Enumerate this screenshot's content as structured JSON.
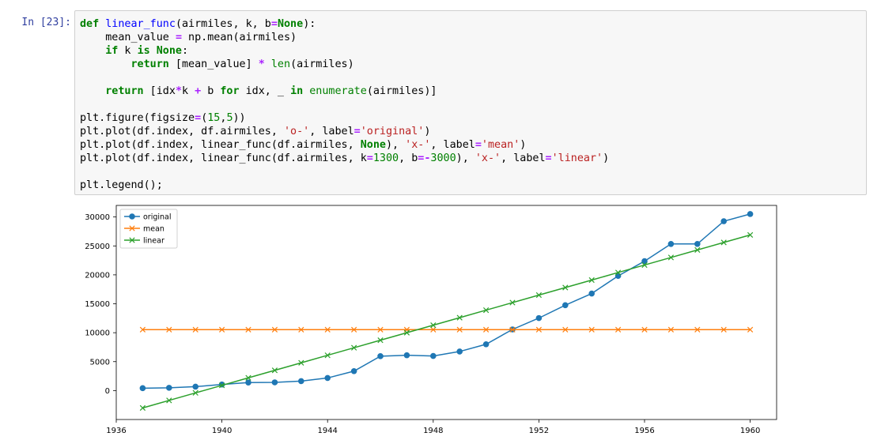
{
  "cell": {
    "prompt": "In [23]:",
    "code_lines": [
      [
        {
          "t": "def",
          "c": "kw"
        },
        {
          "t": " "
        },
        {
          "t": "linear_func",
          "c": "fn"
        },
        {
          "t": "(airmiles, k, b"
        },
        {
          "t": "=",
          "c": "op"
        },
        {
          "t": "None",
          "c": "kw"
        },
        {
          "t": "):"
        }
      ],
      [
        {
          "t": "    mean_value "
        },
        {
          "t": "=",
          "c": "op"
        },
        {
          "t": " np.mean(airmiles)"
        }
      ],
      [
        {
          "t": "    "
        },
        {
          "t": "if",
          "c": "kw"
        },
        {
          "t": " k "
        },
        {
          "t": "is",
          "c": "kw"
        },
        {
          "t": " "
        },
        {
          "t": "None",
          "c": "kw"
        },
        {
          "t": ":"
        }
      ],
      [
        {
          "t": "        "
        },
        {
          "t": "return",
          "c": "kw"
        },
        {
          "t": " [mean_value] "
        },
        {
          "t": "*",
          "c": "op"
        },
        {
          "t": " "
        },
        {
          "t": "len",
          "c": "bi"
        },
        {
          "t": "(airmiles)"
        }
      ],
      [],
      [
        {
          "t": "    "
        },
        {
          "t": "return",
          "c": "kw"
        },
        {
          "t": " [idx"
        },
        {
          "t": "*",
          "c": "op"
        },
        {
          "t": "k "
        },
        {
          "t": "+",
          "c": "op"
        },
        {
          "t": " b "
        },
        {
          "t": "for",
          "c": "kw"
        },
        {
          "t": " idx, _ "
        },
        {
          "t": "in",
          "c": "kw"
        },
        {
          "t": " "
        },
        {
          "t": "enumerate",
          "c": "bi"
        },
        {
          "t": "(airmiles)]"
        }
      ],
      [],
      [
        {
          "t": "plt.figure(figsize"
        },
        {
          "t": "=",
          "c": "op"
        },
        {
          "t": "("
        },
        {
          "t": "15",
          "c": "num"
        },
        {
          "t": ","
        },
        {
          "t": "5",
          "c": "num"
        },
        {
          "t": "))"
        }
      ],
      [
        {
          "t": "plt.plot(df.index, df.airmiles, "
        },
        {
          "t": "'o-'",
          "c": "str"
        },
        {
          "t": ", label"
        },
        {
          "t": "=",
          "c": "op"
        },
        {
          "t": "'original'",
          "c": "str"
        },
        {
          "t": ")"
        }
      ],
      [
        {
          "t": "plt.plot(df.index, linear_func(df.airmiles, "
        },
        {
          "t": "None",
          "c": "kw"
        },
        {
          "t": "), "
        },
        {
          "t": "'x-'",
          "c": "str"
        },
        {
          "t": ", label"
        },
        {
          "t": "=",
          "c": "op"
        },
        {
          "t": "'mean'",
          "c": "str"
        },
        {
          "t": ")"
        }
      ],
      [
        {
          "t": "plt.plot(df.index, linear_func(df.airmiles, k"
        },
        {
          "t": "=",
          "c": "op"
        },
        {
          "t": "1300",
          "c": "num"
        },
        {
          "t": ", b"
        },
        {
          "t": "=-",
          "c": "op"
        },
        {
          "t": "3000",
          "c": "num"
        },
        {
          "t": "), "
        },
        {
          "t": "'x-'",
          "c": "str"
        },
        {
          "t": ", label"
        },
        {
          "t": "=",
          "c": "op"
        },
        {
          "t": "'linear'",
          "c": "str"
        },
        {
          "t": ")"
        }
      ],
      [],
      [
        {
          "t": "plt.legend();"
        }
      ]
    ]
  },
  "chart_data": {
    "type": "line",
    "xlim": [
      1936,
      1961
    ],
    "ylim": [
      -5000,
      32000
    ],
    "xticks": [
      1936,
      1940,
      1944,
      1948,
      1952,
      1956,
      1960
    ],
    "yticks": [
      0,
      5000,
      10000,
      15000,
      20000,
      25000,
      30000
    ],
    "grid": false,
    "legend": "top-left",
    "x": [
      1937,
      1938,
      1939,
      1940,
      1941,
      1942,
      1943,
      1944,
      1945,
      1946,
      1947,
      1948,
      1949,
      1950,
      1951,
      1952,
      1953,
      1954,
      1955,
      1956,
      1957,
      1958,
      1959,
      1960
    ],
    "series": [
      {
        "name": "original",
        "color": "#1f77b4",
        "marker": "o",
        "values": [
          412,
          480,
          683,
          1052,
          1385,
          1418,
          1634,
          2178,
          3362,
          5948,
          6109,
          5981,
          6753,
          8003,
          10566,
          12528,
          14760,
          16769,
          19819,
          22362,
          25340,
          25343,
          29269,
          30514
        ]
      },
      {
        "name": "mean",
        "color": "#ff7f0e",
        "marker": "x",
        "values": [
          10527,
          10527,
          10527,
          10527,
          10527,
          10527,
          10527,
          10527,
          10527,
          10527,
          10527,
          10527,
          10527,
          10527,
          10527,
          10527,
          10527,
          10527,
          10527,
          10527,
          10527,
          10527,
          10527,
          10527
        ]
      },
      {
        "name": "linear",
        "color": "#2ca02c",
        "marker": "x",
        "values": [
          -3000,
          -1700,
          -400,
          900,
          2200,
          3500,
          4800,
          6100,
          7400,
          8700,
          10000,
          11300,
          12600,
          13900,
          15200,
          16500,
          17800,
          19100,
          20400,
          21700,
          23000,
          24300,
          25600,
          26900
        ]
      }
    ]
  }
}
